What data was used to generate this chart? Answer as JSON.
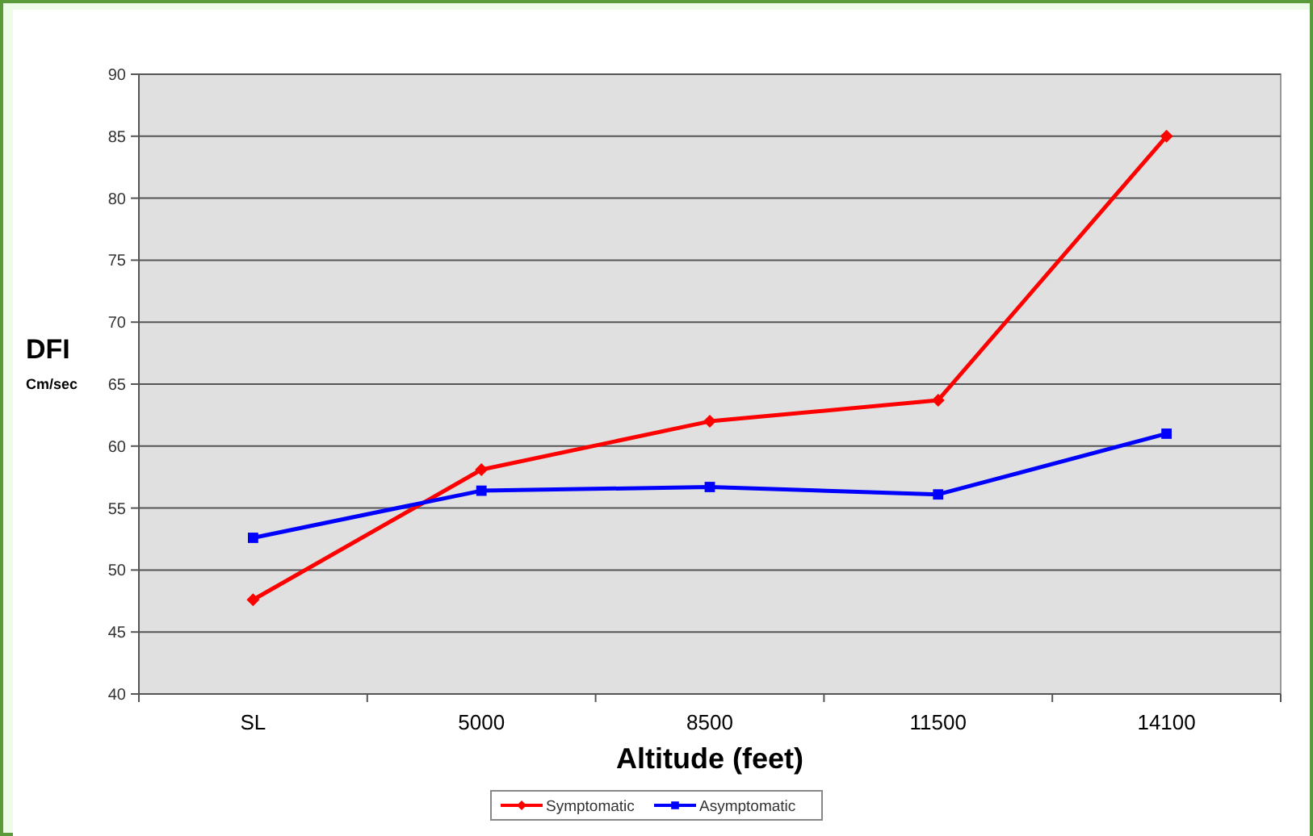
{
  "chart_data": {
    "type": "line",
    "xlabel": "Altitude (feet)",
    "ylabel": "DFI\nCm/sec",
    "categories": [
      "SL",
      "5000",
      "8500",
      "11500",
      "14100"
    ],
    "series": [
      {
        "name": "Symptomatic",
        "color": "#ff0000",
        "marker": "diamond",
        "values": [
          47.6,
          58.1,
          62.0,
          63.7,
          85.0
        ]
      },
      {
        "name": "Asymptomatic",
        "color": "#0000ff",
        "marker": "square",
        "values": [
          52.6,
          56.4,
          56.7,
          56.1,
          61.0
        ]
      }
    ],
    "ylim": [
      40,
      90
    ],
    "yticks": [
      40,
      45,
      50,
      55,
      60,
      65,
      70,
      75,
      80,
      85,
      90
    ],
    "grid": "y",
    "legend": "bottom"
  }
}
